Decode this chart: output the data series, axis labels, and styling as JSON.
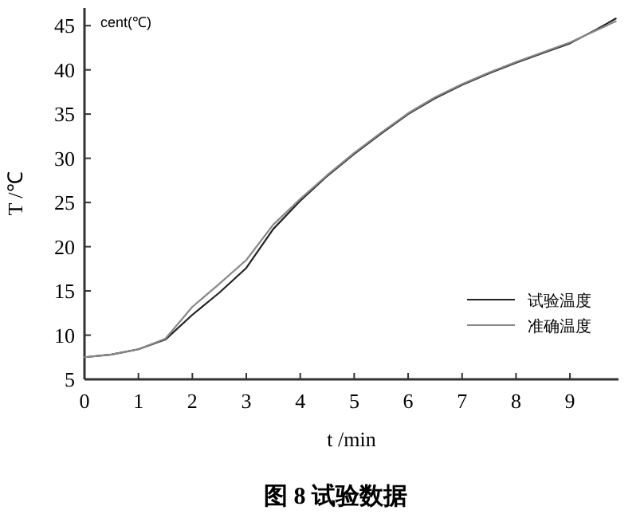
{
  "chart_data": {
    "type": "line",
    "title": "图 8  试验数据",
    "xlabel": "t /min",
    "ylabel": "T /℃",
    "annotations": [
      "cent(℃)"
    ],
    "xlim": [
      0,
      9.9
    ],
    "ylim": [
      5,
      47
    ],
    "xticks": [
      0,
      1,
      2,
      3,
      4,
      5,
      6,
      7,
      8,
      9
    ],
    "yticks": [
      5,
      10,
      15,
      20,
      25,
      30,
      35,
      40,
      45
    ],
    "legend": "bottom right",
    "marker": "none",
    "line_style": "solid",
    "series": [
      {
        "name": "试验温度",
        "color": "#222222",
        "x": [
          0,
          0.5,
          1,
          1.5,
          2,
          2.5,
          3,
          3.5,
          4,
          4.5,
          5,
          5.5,
          6,
          6.5,
          7,
          7.5,
          8,
          8.5,
          9,
          9.5,
          9.85
        ],
        "values": [
          7.5,
          7.8,
          8.4,
          9.5,
          12.3,
          14.8,
          17.6,
          22,
          25.2,
          28,
          30.5,
          32.8,
          35,
          36.8,
          38.3,
          39.6,
          40.8,
          41.9,
          43,
          44.6,
          45.8
        ]
      },
      {
        "name": "准确温度",
        "color": "#888888",
        "x": [
          0,
          0.5,
          1,
          1.5,
          2,
          2.5,
          3,
          3.5,
          4,
          4.5,
          5,
          5.5,
          6,
          6.5,
          7,
          7.5,
          8,
          8.5,
          9,
          9.5,
          9.85
        ],
        "values": [
          7.5,
          7.8,
          8.4,
          9.6,
          13.2,
          15.8,
          18.5,
          22.5,
          25.4,
          28.1,
          30.6,
          32.9,
          35.1,
          36.9,
          38.4,
          39.7,
          40.9,
          42,
          43.1,
          44.5,
          45.5
        ]
      }
    ]
  }
}
